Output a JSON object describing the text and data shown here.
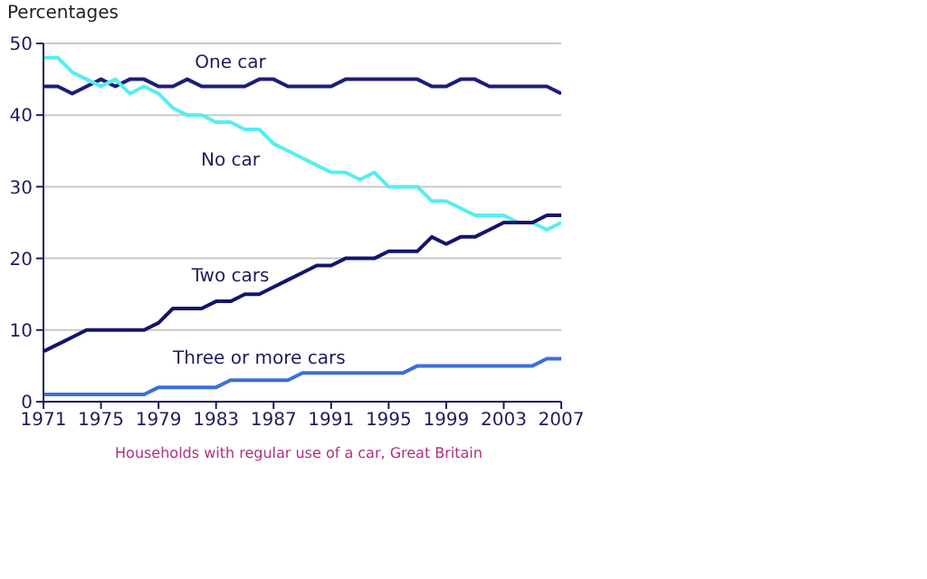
{
  "chart_data": {
    "type": "line",
    "ylabel": "Percentages",
    "x": [
      1971,
      1972,
      1973,
      1974,
      1975,
      1976,
      1977,
      1978,
      1979,
      1980,
      1981,
      1982,
      1983,
      1984,
      1985,
      1986,
      1987,
      1988,
      1989,
      1990,
      1991,
      1992,
      1993,
      1994,
      1995,
      1996,
      1997,
      1998,
      1999,
      2000,
      2001,
      2002,
      2003,
      2004,
      2005,
      2006,
      2007
    ],
    "series": [
      {
        "name": "One car",
        "color": "#1c1c7a",
        "values": [
          44,
          44,
          43,
          44,
          45,
          44,
          45,
          45,
          44,
          44,
          45,
          44,
          44,
          44,
          44,
          45,
          45,
          44,
          44,
          44,
          44,
          45,
          45,
          45,
          45,
          45,
          45,
          44,
          44,
          45,
          45,
          44,
          44,
          44,
          44,
          44,
          43
        ]
      },
      {
        "name": "No car",
        "color": "#55eef0",
        "values": [
          48,
          48,
          46,
          45,
          44,
          45,
          43,
          44,
          43,
          41,
          40,
          40,
          39,
          39,
          38,
          38,
          36,
          35,
          34,
          33,
          32,
          32,
          31,
          32,
          30,
          30,
          30,
          28,
          28,
          27,
          26,
          26,
          26,
          25,
          25,
          24,
          25
        ]
      },
      {
        "name": "Two cars",
        "color": "#14146e",
        "values": [
          7,
          8,
          9,
          10,
          10,
          10,
          10,
          10,
          11,
          13,
          13,
          13,
          14,
          14,
          15,
          15,
          16,
          17,
          18,
          19,
          19,
          20,
          20,
          20,
          21,
          21,
          21,
          23,
          22,
          23,
          23,
          24,
          25,
          25,
          25,
          26,
          26
        ]
      },
      {
        "name": "Three or more cars",
        "color": "#3a6fdc",
        "values": [
          1,
          1,
          1,
          1,
          1,
          1,
          1,
          1,
          2,
          2,
          2,
          2,
          2,
          3,
          3,
          3,
          3,
          3,
          4,
          4,
          4,
          4,
          4,
          4,
          4,
          4,
          5,
          5,
          5,
          5,
          5,
          5,
          5,
          5,
          5,
          6,
          6
        ]
      }
    ],
    "xlim": [
      1971,
      2007
    ],
    "xticks": [
      1971,
      1975,
      1979,
      1983,
      1987,
      1991,
      1995,
      1999,
      2003,
      2007
    ],
    "ylim": [
      0,
      50
    ],
    "yticks": [
      0,
      10,
      20,
      30,
      40,
      50
    ],
    "grid": "y",
    "marker": "none",
    "line_style": "solid",
    "annotations": [
      "Households with regular use of a car, Great Britain"
    ]
  }
}
